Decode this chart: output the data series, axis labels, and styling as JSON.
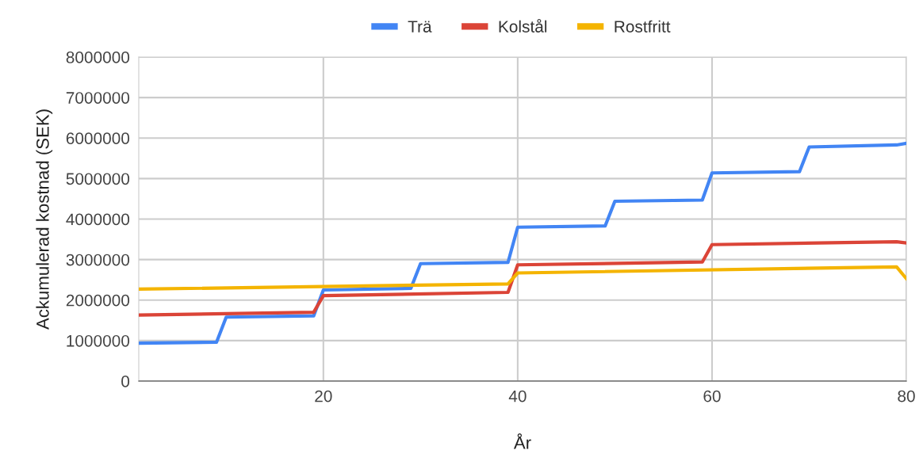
{
  "chart_data": {
    "type": "line",
    "xlabel": "År",
    "ylabel": "Ackumulerad kostnad (SEK)",
    "xlim": [
      1,
      80
    ],
    "xticks": [
      20,
      40,
      60,
      80
    ],
    "ylim": [
      0,
      8000000
    ],
    "yticks": [
      0,
      1000000,
      2000000,
      3000000,
      4000000,
      5000000,
      6000000,
      7000000,
      8000000
    ],
    "grid": true,
    "legend": "top",
    "marker": "none",
    "line_style": "solid",
    "series": [
      {
        "name": "Trä",
        "color": "#4285f4",
        "x": [
          1,
          9,
          10,
          19,
          20,
          29,
          30,
          39,
          40,
          49,
          50,
          59,
          60,
          69,
          70,
          79,
          80
        ],
        "values": [
          935000,
          960000,
          1580000,
          1610000,
          2250000,
          2290000,
          2900000,
          2930000,
          3800000,
          3830000,
          4440000,
          4470000,
          5140000,
          5170000,
          5780000,
          5830000,
          5870000
        ]
      },
      {
        "name": "Kolstål",
        "color": "#db4437",
        "x": [
          1,
          19,
          20,
          39,
          40,
          59,
          60,
          79,
          80
        ],
        "values": [
          1630000,
          1700000,
          2110000,
          2190000,
          2870000,
          2940000,
          3370000,
          3440000,
          3410000
        ]
      },
      {
        "name": "Rostfritt",
        "color": "#f4b400",
        "x": [
          1,
          39,
          40,
          79,
          80
        ],
        "values": [
          2270000,
          2400000,
          2670000,
          2820000,
          2530000
        ]
      }
    ]
  }
}
